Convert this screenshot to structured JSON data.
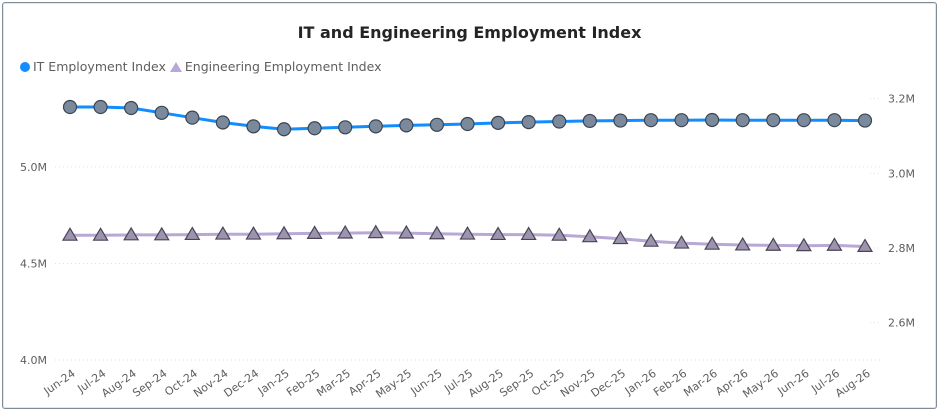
{
  "chart_data": {
    "type": "line",
    "title": "IT and Engineering Employment Index",
    "categories": [
      "Jun-24",
      "Jul-24",
      "Aug-24",
      "Sep-24",
      "Oct-24",
      "Nov-24",
      "Dec-24",
      "Jan-25",
      "Feb-25",
      "Mar-25",
      "Apr-25",
      "May-25",
      "Jun-25",
      "Jul-25",
      "Aug-25",
      "Sep-25",
      "Oct-25",
      "Nov-25",
      "Dec-25",
      "Jan-26",
      "Feb-26",
      "Mar-26",
      "Apr-26",
      "May-26",
      "Jun-26",
      "Jul-26",
      "Aug-26"
    ],
    "left_axis": {
      "ticks": [
        "5.0M",
        "4.5M",
        "4.0M"
      ],
      "tick_values": [
        5000000,
        4500000,
        4000000
      ],
      "range": [
        4000000,
        5450000
      ]
    },
    "right_axis": {
      "ticks": [
        "3.2M",
        "3.0M",
        "2.8M",
        "2.6M"
      ],
      "tick_values": [
        3200000,
        3000000,
        2800000,
        2600000
      ],
      "range": [
        2500000,
        3250000
      ]
    },
    "legend_position": "top-left",
    "grid": true,
    "series": [
      {
        "name": "IT Employment Index",
        "axis": "left",
        "color": "#118dff",
        "marker": "circle",
        "values": [
          5310000,
          5310000,
          5305000,
          5280000,
          5255000,
          5230000,
          5210000,
          5195000,
          5200000,
          5205000,
          5210000,
          5215000,
          5218000,
          5222000,
          5228000,
          5232000,
          5235000,
          5238000,
          5240000,
          5242000,
          5242000,
          5243000,
          5242000,
          5242000,
          5242000,
          5242000,
          5240000
        ]
      },
      {
        "name": "Engineering Employment Index",
        "axis": "right",
        "color": "#b7a8d6",
        "marker": "triangle",
        "values": [
          2834000,
          2834000,
          2835000,
          2835000,
          2836000,
          2837000,
          2837000,
          2838000,
          2839000,
          2840000,
          2841000,
          2840000,
          2838000,
          2837000,
          2836000,
          2836000,
          2834000,
          2830000,
          2825000,
          2818000,
          2813000,
          2810000,
          2808000,
          2807000,
          2806000,
          2807000,
          2804000
        ]
      }
    ]
  }
}
